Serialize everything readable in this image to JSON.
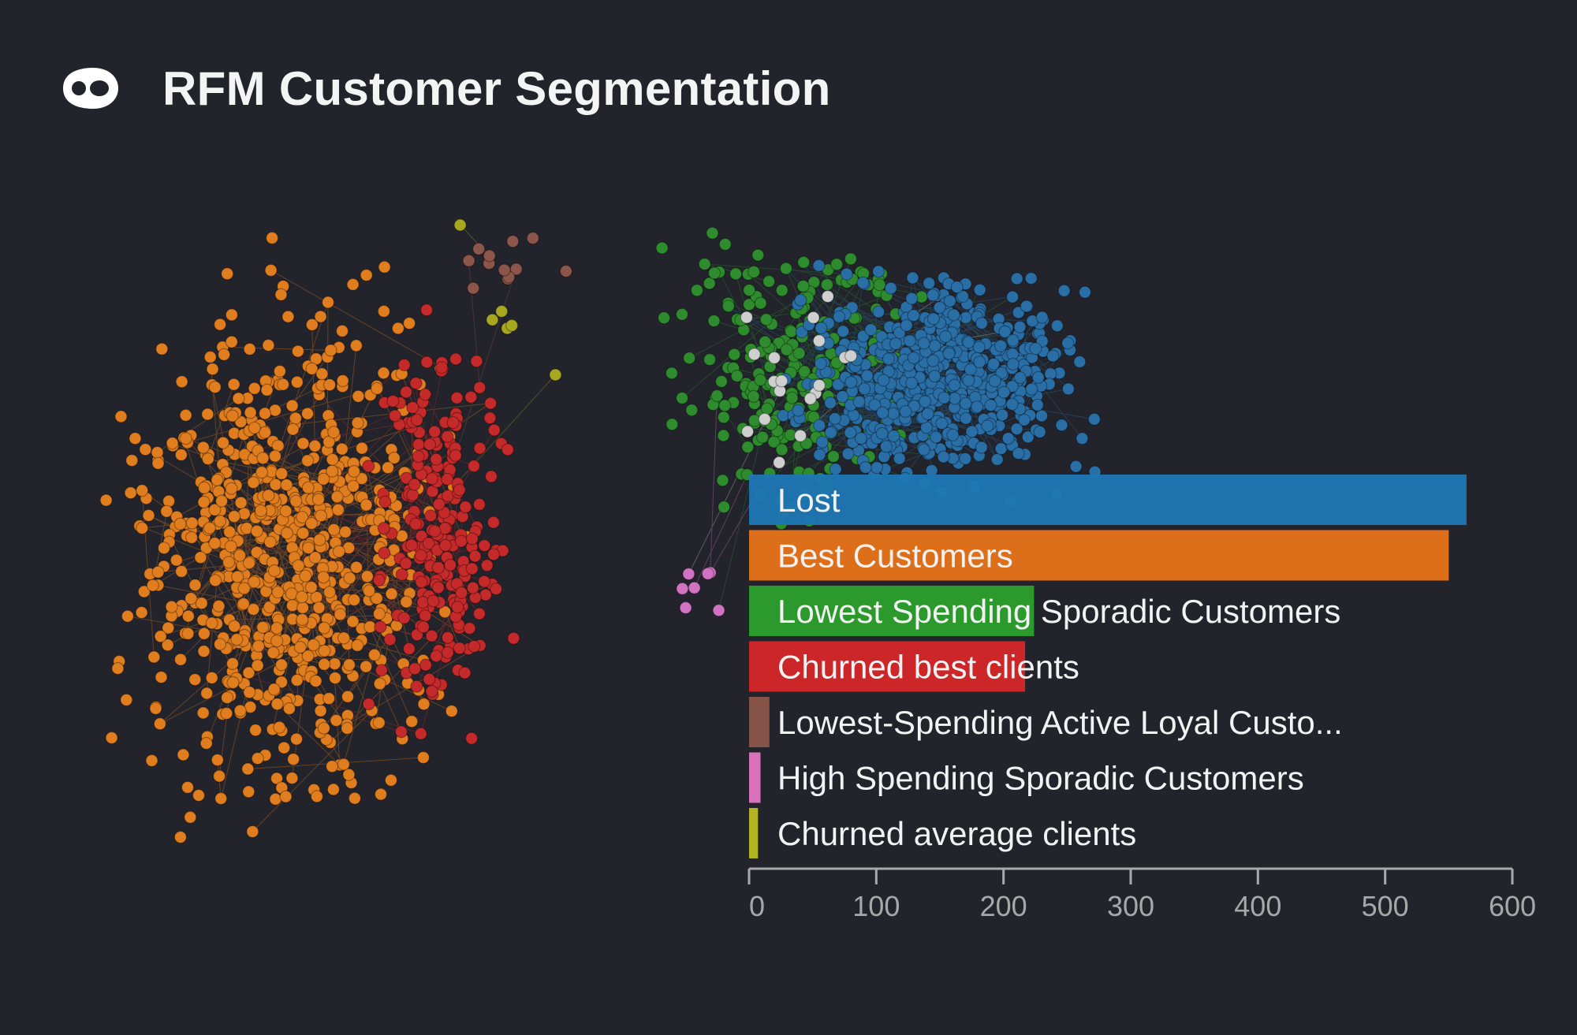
{
  "header": {
    "title": "RFM Customer Segmentation",
    "logo_icon": "eye-icon"
  },
  "colors": {
    "background": "#22232b",
    "text": "#f2f2f2",
    "axis": "#a8a8a8"
  },
  "chart_data": {
    "type": "bar",
    "orientation": "horizontal",
    "title": "",
    "xlabel": "",
    "ylabel": "",
    "xlim": [
      0,
      600
    ],
    "x_ticks": [
      0,
      100,
      200,
      300,
      400,
      500,
      600
    ],
    "grid": false,
    "legend": "none",
    "categories": [
      "Lost",
      "Best Customers",
      "Lowest Spending Sporadic Customers",
      "Churned best clients",
      "Lowest-Spending Active Loyal Custo...",
      "High Spending Sporadic Customers",
      "Churned average clients"
    ],
    "values": [
      564,
      550,
      224,
      217,
      16,
      9,
      7
    ],
    "colors": [
      "#1f77b4",
      "#e8741a",
      "#2ca02c",
      "#d62728",
      "#8c564b",
      "#e377c2",
      "#bcbd22"
    ],
    "background_network": {
      "type": "network",
      "description_visible": false,
      "cluster_colors": [
        "#e07d1e",
        "#c42a2a",
        "#2e8c2e",
        "#2a6ea6",
        "#cfcfcf",
        "#8c564b",
        "#d173c2",
        "#a8a820"
      ]
    }
  }
}
